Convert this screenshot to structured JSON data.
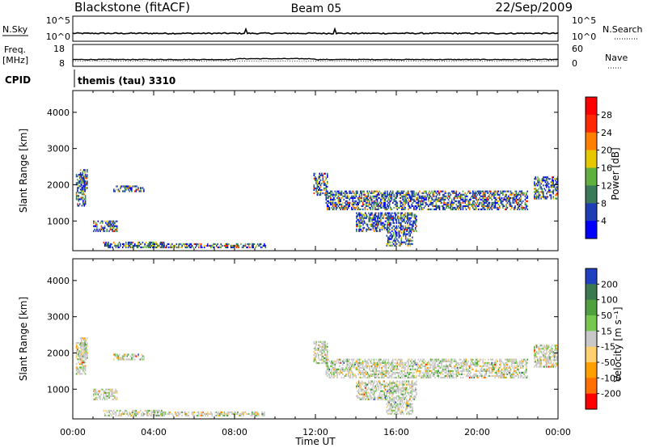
{
  "header": {
    "station": "Blackstone (fitACF)",
    "beam": "Beam 05",
    "date": "22/Sep/2009"
  },
  "strip_nsky": {
    "left_label": "N.Sky",
    "right_label": "N.Search",
    "left_ticks": [
      "10^5",
      "10^0"
    ],
    "right_ticks": [
      "10^5",
      "10^0"
    ]
  },
  "strip_freq": {
    "left_label_1": "Freq.",
    "left_label_2": "[MHz]",
    "right_label": "Nave",
    "left_ticks": [
      "18",
      "8"
    ],
    "right_ticks": [
      "60",
      "0"
    ]
  },
  "cpid": {
    "label": "CPID",
    "value": "themis (tau) 3310"
  },
  "chart_data": [
    {
      "type": "heatmap",
      "title": "",
      "ylabel": "Slant Range [km]",
      "ylim": [
        180,
        4600
      ],
      "yticks": [
        "4000",
        "3000",
        "2000",
        "1000"
      ],
      "xlim": [
        0,
        24
      ],
      "colorbar": {
        "label": "Power [dB]",
        "ticks": [
          "28",
          "24",
          "20",
          "16",
          "12",
          "8",
          "4"
        ],
        "colors": [
          "#0000ff",
          "#1e3cb4",
          "#3a7a5a",
          "#60b040",
          "#e6c800",
          "#ff8000",
          "#ff2800",
          "#ff0000"
        ]
      },
      "echo_regions": [
        {
          "t": [
            0.15,
            0.6
          ],
          "range": [
            1400,
            2300
          ]
        },
        {
          "t": [
            0.35,
            0.7
          ],
          "range": [
            1800,
            2400
          ]
        },
        {
          "t": [
            1.0,
            2.2
          ],
          "range": [
            700,
            1000
          ]
        },
        {
          "t": [
            2.0,
            3.5
          ],
          "range": [
            1800,
            1950
          ]
        },
        {
          "t": [
            1.5,
            4.5
          ],
          "range": [
            250,
            400
          ]
        },
        {
          "t": [
            4.0,
            9.5
          ],
          "range": [
            250,
            350
          ]
        },
        {
          "t": [
            11.9,
            12.6
          ],
          "range": [
            1700,
            2300
          ]
        },
        {
          "t": [
            12.5,
            22.5
          ],
          "range": [
            1300,
            1800
          ]
        },
        {
          "t": [
            14.0,
            17.0
          ],
          "range": [
            700,
            1200
          ]
        },
        {
          "t": [
            15.5,
            16.8
          ],
          "range": [
            300,
            700
          ]
        },
        {
          "t": [
            22.8,
            24.0
          ],
          "range": [
            1600,
            2200
          ]
        }
      ]
    },
    {
      "type": "heatmap",
      "title": "",
      "ylabel": "Slant Range [km]",
      "ylim": [
        180,
        4600
      ],
      "yticks": [
        "4000",
        "3000",
        "2000",
        "1000"
      ],
      "xlim": [
        0,
        24
      ],
      "xlabel": "Time UT",
      "xticks": [
        "00:00",
        "04:00",
        "08:00",
        "12:00",
        "16:00",
        "20:00",
        "00:00"
      ],
      "colorbar": {
        "label": "Velocity [m s⁻¹]",
        "ticks": [
          "200",
          "100",
          "50",
          "15",
          "-15",
          "-50",
          "-100",
          "-200"
        ],
        "colors": [
          "#2040c0",
          "#3c7850",
          "#50a040",
          "#78c850",
          "#c8c8c8",
          "#ffd070",
          "#ffa000",
          "#ff7000",
          "#ff0000"
        ]
      },
      "echo_regions": [
        {
          "t": [
            0.15,
            0.6
          ],
          "range": [
            1400,
            2300
          ]
        },
        {
          "t": [
            0.35,
            0.7
          ],
          "range": [
            1800,
            2400
          ]
        },
        {
          "t": [
            1.0,
            2.2
          ],
          "range": [
            700,
            1000
          ]
        },
        {
          "t": [
            2.0,
            3.5
          ],
          "range": [
            1800,
            1950
          ]
        },
        {
          "t": [
            1.5,
            4.5
          ],
          "range": [
            250,
            400
          ]
        },
        {
          "t": [
            4.0,
            9.5
          ],
          "range": [
            250,
            350
          ]
        },
        {
          "t": [
            11.9,
            12.6
          ],
          "range": [
            1700,
            2300
          ]
        },
        {
          "t": [
            12.5,
            22.5
          ],
          "range": [
            1300,
            1800
          ]
        },
        {
          "t": [
            14.0,
            17.0
          ],
          "range": [
            700,
            1200
          ]
        },
        {
          "t": [
            15.5,
            16.8
          ],
          "range": [
            300,
            700
          ]
        },
        {
          "t": [
            22.8,
            24.0
          ],
          "range": [
            1600,
            2200
          ]
        }
      ]
    }
  ]
}
